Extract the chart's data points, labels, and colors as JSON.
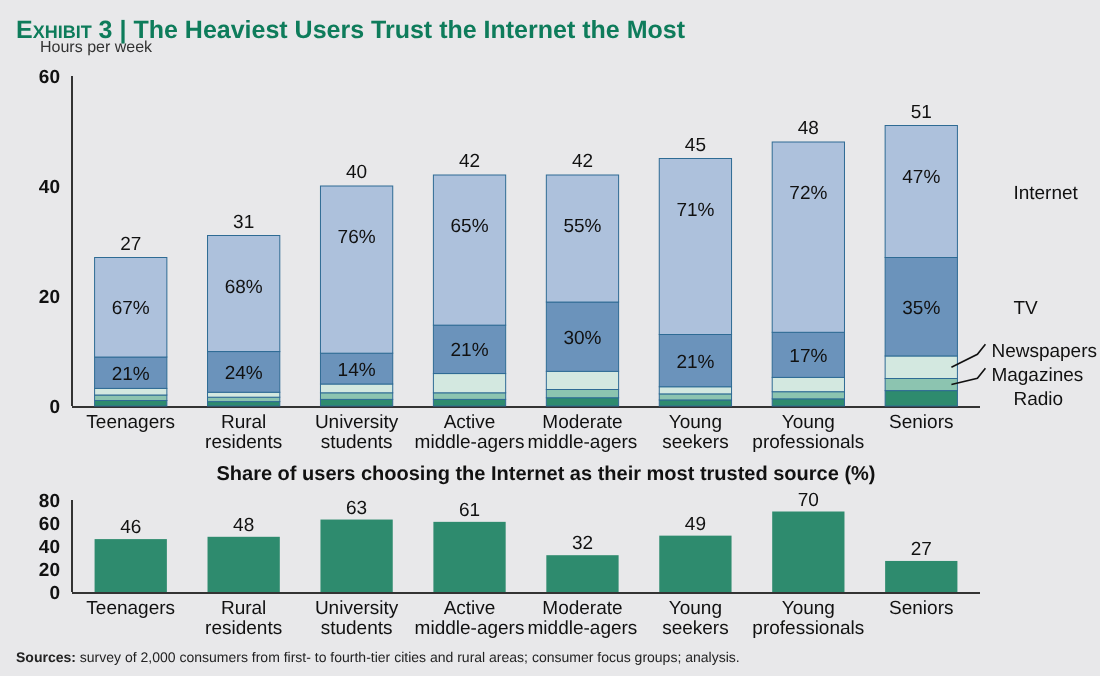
{
  "chart_data": [
    {
      "type": "bar",
      "title": "Exhibit 3 | The Heaviest Users Trust the Internet the Most",
      "ylabel": "Hours per week",
      "categories": [
        "Teenagers",
        "Rural residents",
        "University students",
        "Active middle-agers",
        "Moderate middle-agers",
        "Young seekers",
        "Young professionals",
        "Seniors"
      ],
      "stacked": true,
      "ylim": [
        0,
        60
      ],
      "yticks": [
        0,
        20,
        40,
        60
      ],
      "legend": "right",
      "series": [
        {
          "name": "Radio",
          "color": "#2e8b6e",
          "values": [
            1,
            0.8,
            1.2,
            1.2,
            1.5,
            1.1,
            1.3,
            2.8
          ]
        },
        {
          "name": "Magazines",
          "color": "#8cc4b0",
          "values": [
            1,
            0.8,
            1.2,
            1.2,
            1.5,
            1.1,
            1.3,
            2.2
          ]
        },
        {
          "name": "Newspapers",
          "color": "#d3e8e0",
          "values": [
            1.2,
            0.9,
            1.6,
            3.5,
            3.3,
            1.3,
            2.6,
            4.1
          ]
        },
        {
          "name": "TV",
          "color": "#6b93bb",
          "values": [
            5.7,
            7.4,
            5.6,
            8.8,
            12.6,
            9.5,
            8.2,
            17.9
          ]
        },
        {
          "name": "Internet",
          "color": "#adc1dc",
          "values": [
            18.1,
            21.1,
            30.4,
            27.3,
            23.1,
            32,
            34.6,
            24
          ]
        }
      ],
      "totals": [
        "27",
        "31",
        "40",
        "42",
        "42",
        "45",
        "48",
        "51"
      ],
      "annotations": [
        {
          "text": "21%",
          "x": "Teenagers",
          "y": 8.9
        },
        {
          "text": "24%",
          "x": "Rural residents",
          "y": 9.9
        },
        {
          "text": "14%",
          "x": "University students",
          "y": 9.6
        },
        {
          "text": "21%",
          "x": "Active middle-agers",
          "y": 14.7
        },
        {
          "text": "30%",
          "x": "Moderate middle-agers",
          "y": 18.9
        },
        {
          "text": "21%",
          "x": "Young seekers",
          "y": 13
        },
        {
          "text": "17%",
          "x": "Young professionals",
          "y": 13.4
        },
        {
          "text": "35%",
          "x": "Seniors",
          "y": 27
        },
        {
          "text": "67%",
          "x": "Teenagers",
          "y": 27
        },
        {
          "text": "68%",
          "x": "Rural residents",
          "y": 31
        },
        {
          "text": "76%",
          "x": "University students",
          "y": 40
        },
        {
          "text": "65%",
          "x": "Active middle-agers",
          "y": 42
        },
        {
          "text": "55%",
          "x": "Moderate middle-agers",
          "y": 42
        },
        {
          "text": "71%",
          "x": "Young seekers",
          "y": 45
        },
        {
          "text": "72%",
          "x": "Young professionals",
          "y": 48
        },
        {
          "text": "47%",
          "x": "Seniors",
          "y": 51
        }
      ]
    },
    {
      "type": "bar",
      "title": "Share of users choosing the Internet as their most trusted source (%)",
      "categories": [
        "Teenagers",
        "Rural residents",
        "University students",
        "Active middle-agers",
        "Moderate middle-agers",
        "Young seekers",
        "Young professionals",
        "Seniors"
      ],
      "values": [
        46,
        48,
        63,
        61,
        32,
        49,
        70,
        27
      ],
      "color": "#2e8b6e",
      "ylim": [
        0,
        80
      ],
      "yticks": [
        0,
        20,
        40,
        60,
        80
      ],
      "data_labels": true,
      "annotations": [
        "Sources: survey of 2,000 consumers from first- to fourth-tier cities and rural areas; consumer focus groups; analysis."
      ]
    }
  ]
}
